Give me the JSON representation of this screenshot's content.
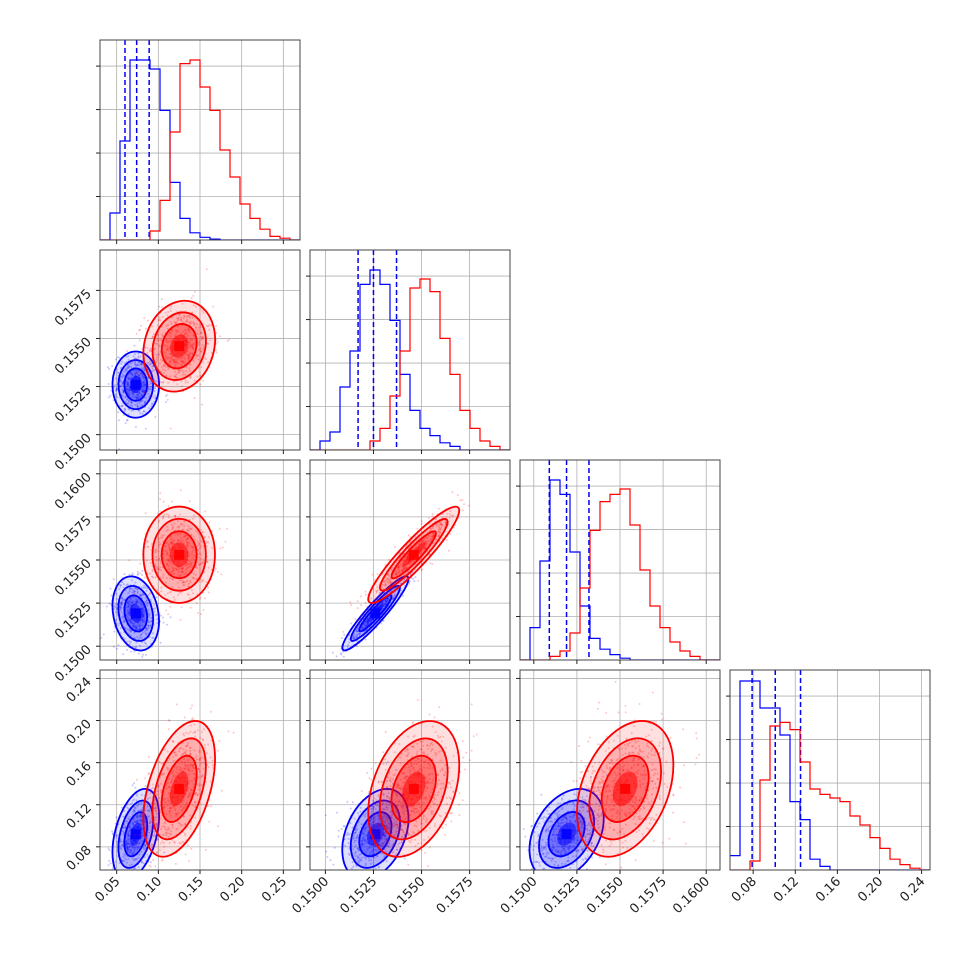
{
  "chart_data": {
    "type": "corner",
    "parameters": [
      {
        "range": [
          0.03,
          0.27
        ],
        "ticks": [
          "0.05",
          "0.10",
          "0.15",
          "0.20",
          "0.25"
        ],
        "tick_values": [
          0.05,
          0.1,
          0.15,
          0.2,
          0.25
        ]
      },
      {
        "range": [
          0.1492,
          0.1596
        ],
        "ticks": [
          "0.1500",
          "0.1525",
          "0.1550",
          "0.1575"
        ],
        "tick_values": [
          0.15,
          0.1525,
          0.155,
          0.1575
        ]
      },
      {
        "range": [
          0.1492,
          0.1608
        ],
        "ticks": [
          "0.1500",
          "0.1525",
          "0.1550",
          "0.1575",
          "0.1600"
        ],
        "tick_values": [
          0.15,
          0.1525,
          0.155,
          0.1575,
          0.16
        ]
      },
      {
        "range": [
          0.058,
          0.248
        ],
        "ticks": [
          "0.08",
          "0.12",
          "0.16",
          "0.20",
          "0.24"
        ],
        "tick_values": [
          0.08,
          0.12,
          0.16,
          0.2,
          0.24
        ]
      }
    ],
    "series": [
      {
        "color": "#0000ff",
        "quantiles": [
          [
            0.06,
            0.074,
            0.089
          ],
          [
            0.1517,
            0.1525,
            0.1537
          ],
          [
            0.1509,
            0.1519,
            0.1532
          ],
          [
            0.079,
            0.101,
            0.125
          ]
        ],
        "histograms": [
          [
            0,
            0.15,
            0.55,
            1.0,
            1.0,
            0.95,
            0.72,
            0.32,
            0.12,
            0.04,
            0.015,
            0.005,
            0,
            0,
            0,
            0,
            0,
            0,
            0,
            0
          ],
          [
            0,
            0.05,
            0.1,
            0.35,
            0.55,
            0.92,
            1.0,
            0.92,
            0.72,
            0.42,
            0.22,
            0.12,
            0.08,
            0.04,
            0.02,
            0,
            0,
            0,
            0,
            0
          ],
          [
            0,
            0.18,
            0.55,
            1.0,
            0.92,
            0.6,
            0.3,
            0.12,
            0.06,
            0.03,
            0.01,
            0,
            0,
            0,
            0,
            0,
            0,
            0,
            0,
            0
          ],
          [
            0.08,
            1.05,
            1.05,
            0.9,
            0.9,
            0.75,
            0.38,
            0.28,
            0.06,
            0.02,
            0,
            0,
            0,
            0,
            0,
            0,
            0,
            0,
            0,
            0
          ]
        ],
        "means": [
          0.073,
          0.1526,
          0.1519,
          0.092
        ],
        "sigmas": [
          0.013,
          0.0008,
          0.001,
          0.02
        ],
        "correlations": {
          "1,0": 0.0,
          "2,0": -0.2,
          "2,1": 0.93,
          "3,0": 0.4,
          "3,1": 0.35,
          "3,2": 0.35
        }
      },
      {
        "color": "#ff0000",
        "quantiles": [],
        "histograms": [
          [
            0,
            0,
            0,
            0,
            0,
            0.05,
            0.22,
            0.6,
            0.98,
            1.0,
            0.85,
            0.72,
            0.5,
            0.35,
            0.2,
            0.12,
            0.06,
            0.02,
            0.01,
            0
          ],
          [
            0,
            0,
            0,
            0,
            0,
            0,
            0.05,
            0.12,
            0.3,
            0.55,
            0.9,
            0.95,
            0.88,
            0.62,
            0.42,
            0.22,
            0.12,
            0.05,
            0.02,
            0
          ],
          [
            0,
            0,
            0,
            0.02,
            0.05,
            0.15,
            0.4,
            0.72,
            0.88,
            0.92,
            0.95,
            0.75,
            0.5,
            0.3,
            0.18,
            0.1,
            0.05,
            0.02,
            0,
            0
          ],
          [
            0,
            0,
            0.05,
            0.5,
            0.8,
            0.82,
            0.78,
            0.6,
            0.45,
            0.42,
            0.4,
            0.38,
            0.3,
            0.25,
            0.18,
            0.12,
            0.06,
            0.03,
            0.01,
            0
          ]
        ],
        "means": [
          0.125,
          0.1546,
          0.1553,
          0.135
        ],
        "sigmas": [
          0.02,
          0.0011,
          0.0013,
          0.03
        ],
        "correlations": {
          "1,0": 0.15,
          "2,0": 0.0,
          "2,1": 0.92,
          "3,0": 0.45,
          "3,1": 0.35,
          "3,2": 0.35
        }
      }
    ],
    "grid": true,
    "tick_rotation_deg": 45
  }
}
